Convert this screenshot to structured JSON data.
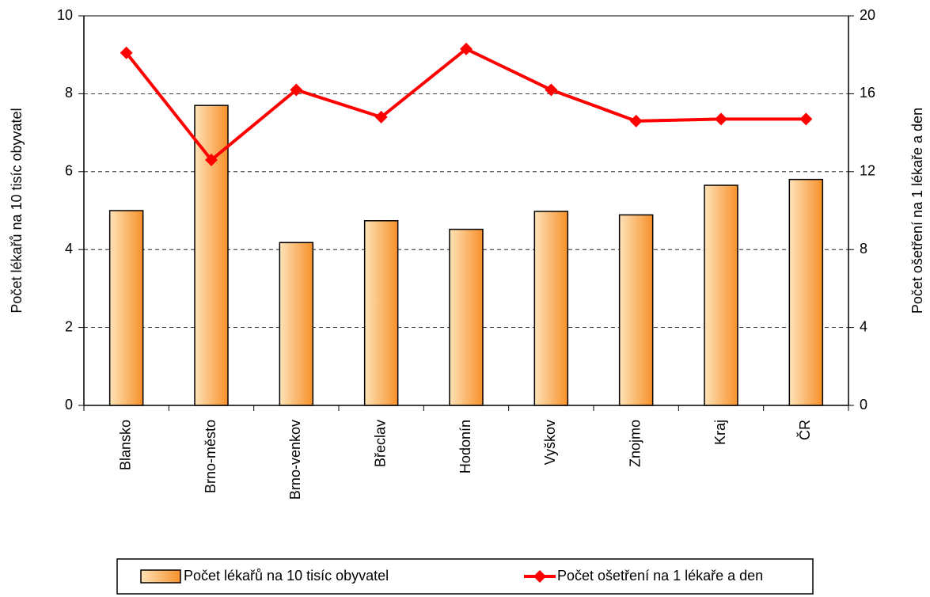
{
  "chart_data": {
    "type": "bar_line",
    "categories": [
      "Blansko",
      "Brno-město",
      "Brno-venkov",
      "Břeclav",
      "Hodonín",
      "Vyškov",
      "Znojmo",
      "Kraj",
      "ČR"
    ],
    "y_label": "Počet lékařů na 10 tisíc obyvatel",
    "y2_label": "Počet ošetření na 1 lékaře a den",
    "series": [
      {
        "name": "Počet lékařů na 10 tisíc obyvatel",
        "type": "bar",
        "color": "#f79a3a",
        "values": [
          5.0,
          7.7,
          4.18,
          4.74,
          4.52,
          4.98,
          4.89,
          5.65,
          5.8
        ]
      },
      {
        "name": "Počet ošetření na 1 lékaře a den",
        "type": "line",
        "axis": "y2",
        "color": "#ff0000",
        "values": [
          18.1,
          12.6,
          16.2,
          14.8,
          18.3,
          16.2,
          14.6,
          14.7,
          14.7
        ]
      }
    ],
    "ylim": [
      0,
      10
    ],
    "yticks": [
      0,
      2,
      4,
      6,
      8,
      10
    ],
    "y2lim": [
      0,
      20
    ],
    "y2ticks": [
      0,
      4,
      8,
      12,
      16,
      20
    ],
    "grid": true,
    "legend": "bottom"
  }
}
